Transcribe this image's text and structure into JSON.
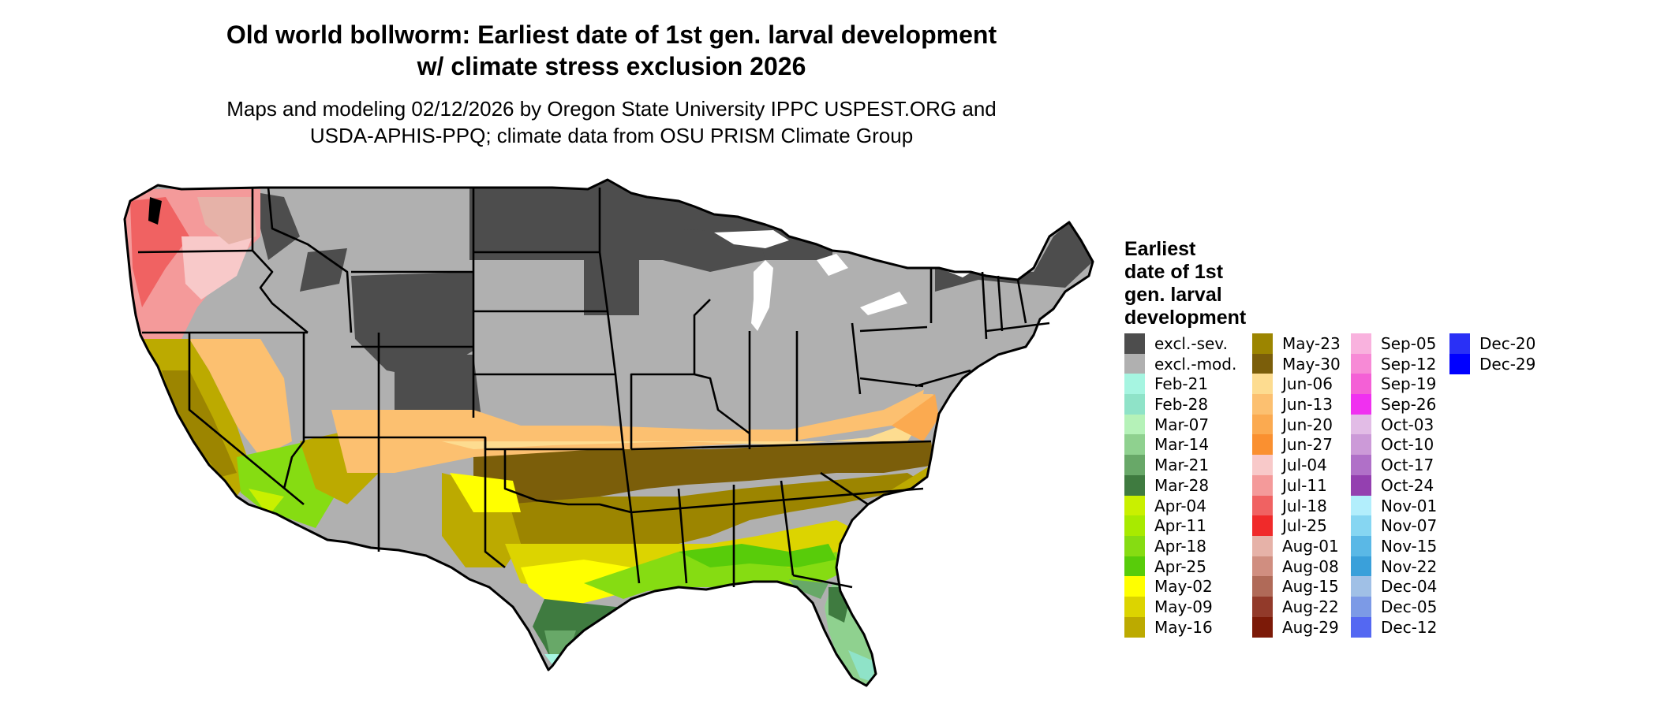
{
  "title": {
    "line1": "Old world bollworm: Earliest date of 1st gen. larval development",
    "line2": "w/ climate stress exclusion 2026"
  },
  "subtitle": {
    "line1": "Maps and modeling 02/12/2026 by Oregon State University IPPC USPEST.ORG and",
    "line2": "USDA-APHIS-PPQ; climate data from OSU PRISM Climate Group"
  },
  "legend": {
    "title_lines": [
      "Earliest",
      "date of 1st",
      "gen. larval",
      "development"
    ],
    "items": [
      {
        "label": "excl.-sev.",
        "color": "#4d4d4d"
      },
      {
        "label": "excl.-mod.",
        "color": "#b0b0b0"
      },
      {
        "label": "Feb-21",
        "color": "#a6f5e1"
      },
      {
        "label": "Feb-28",
        "color": "#8fe3c8"
      },
      {
        "label": "Mar-07",
        "color": "#b5f2b8"
      },
      {
        "label": "Mar-14",
        "color": "#8fd18f"
      },
      {
        "label": "Mar-21",
        "color": "#68a868"
      },
      {
        "label": "Mar-28",
        "color": "#3f7b40"
      },
      {
        "label": "Apr-04",
        "color": "#c9f000"
      },
      {
        "label": "Apr-11",
        "color": "#a8ea00"
      },
      {
        "label": "Apr-18",
        "color": "#86dc12"
      },
      {
        "label": "Apr-25",
        "color": "#58cc0a"
      },
      {
        "label": "May-02",
        "color": "#ffff00"
      },
      {
        "label": "May-09",
        "color": "#dcd400"
      },
      {
        "label": "May-16",
        "color": "#bcaa00"
      },
      {
        "label": "May-23",
        "color": "#9c8500"
      },
      {
        "label": "May-30",
        "color": "#7b5e0a"
      },
      {
        "label": "Jun-06",
        "color": "#fddc90"
      },
      {
        "label": "Jun-13",
        "color": "#fcc070"
      },
      {
        "label": "Jun-20",
        "color": "#fbaa50"
      },
      {
        "label": "Jun-27",
        "color": "#fa9030"
      },
      {
        "label": "Jul-04",
        "color": "#f8c9c9"
      },
      {
        "label": "Jul-11",
        "color": "#f49a9a"
      },
      {
        "label": "Jul-18",
        "color": "#f06262"
      },
      {
        "label": "Jul-25",
        "color": "#f02a2a"
      },
      {
        "label": "Aug-01",
        "color": "#e6b2a8"
      },
      {
        "label": "Aug-08",
        "color": "#d08e80"
      },
      {
        "label": "Aug-15",
        "color": "#b06a58"
      },
      {
        "label": "Aug-22",
        "color": "#923a2a"
      },
      {
        "label": "Aug-29",
        "color": "#7c1a08"
      },
      {
        "label": "Sep-05",
        "color": "#f9b2de"
      },
      {
        "label": "Sep-12",
        "color": "#f78ad6"
      },
      {
        "label": "Sep-19",
        "color": "#f460d6"
      },
      {
        "label": "Sep-26",
        "color": "#f030f0"
      },
      {
        "label": "Oct-03",
        "color": "#e2bce6"
      },
      {
        "label": "Oct-10",
        "color": "#cc9ad8"
      },
      {
        "label": "Oct-17",
        "color": "#b070c8"
      },
      {
        "label": "Oct-24",
        "color": "#9440b0"
      },
      {
        "label": "Nov-01",
        "color": "#b2eefc"
      },
      {
        "label": "Nov-07",
        "color": "#86d6f2"
      },
      {
        "label": "Nov-15",
        "color": "#5ab8e6"
      },
      {
        "label": "Nov-22",
        "color": "#3aa0da"
      },
      {
        "label": "Dec-04",
        "color": "#a0c0e6"
      },
      {
        "label": "Dec-05",
        "color": "#7c9ae6"
      },
      {
        "label": "Dec-12",
        "color": "#5468f2"
      },
      {
        "label": "Dec-20",
        "color": "#2a30f6"
      },
      {
        "label": "Dec-29",
        "color": "#0000ff"
      }
    ]
  }
}
